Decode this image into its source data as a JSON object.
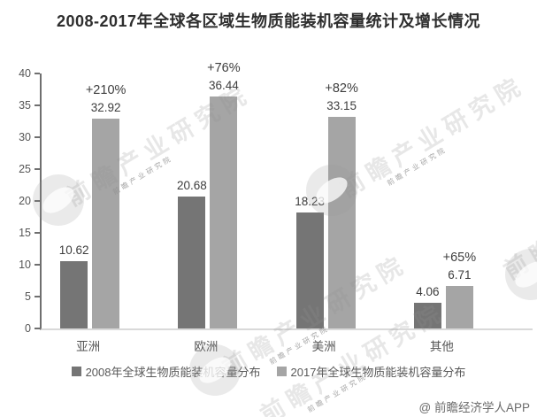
{
  "title": "2008-2017年全球各区域生物质能装机容量统计及增长情况",
  "chart_data": {
    "type": "bar",
    "title": "2008-2017年全球各区域生物质能装机容量统计及增长情况",
    "categories": [
      "亚洲",
      "欧洲",
      "美洲",
      "其他"
    ],
    "series": [
      {
        "name": "2008年全球生物质能装机容量分布",
        "color": "#757575",
        "values": [
          10.62,
          20.68,
          18.23,
          4.06
        ]
      },
      {
        "name": "2017年全球生物质能装机容量分布",
        "color": "#a5a5a5",
        "values": [
          32.92,
          36.44,
          33.15,
          6.71
        ]
      }
    ],
    "growth_labels": [
      "+210%",
      "+76%",
      "+82%",
      "+65%"
    ],
    "ylim": [
      0,
      40
    ],
    "y_ticks": [
      0,
      5,
      10,
      15,
      20,
      25,
      30,
      35,
      40
    ],
    "legend_position": "bottom",
    "grid": false
  },
  "watermark": {
    "text": "前瞻产业研究院"
  },
  "footer": {
    "attribution": "@ 前瞻经济学人APP"
  }
}
